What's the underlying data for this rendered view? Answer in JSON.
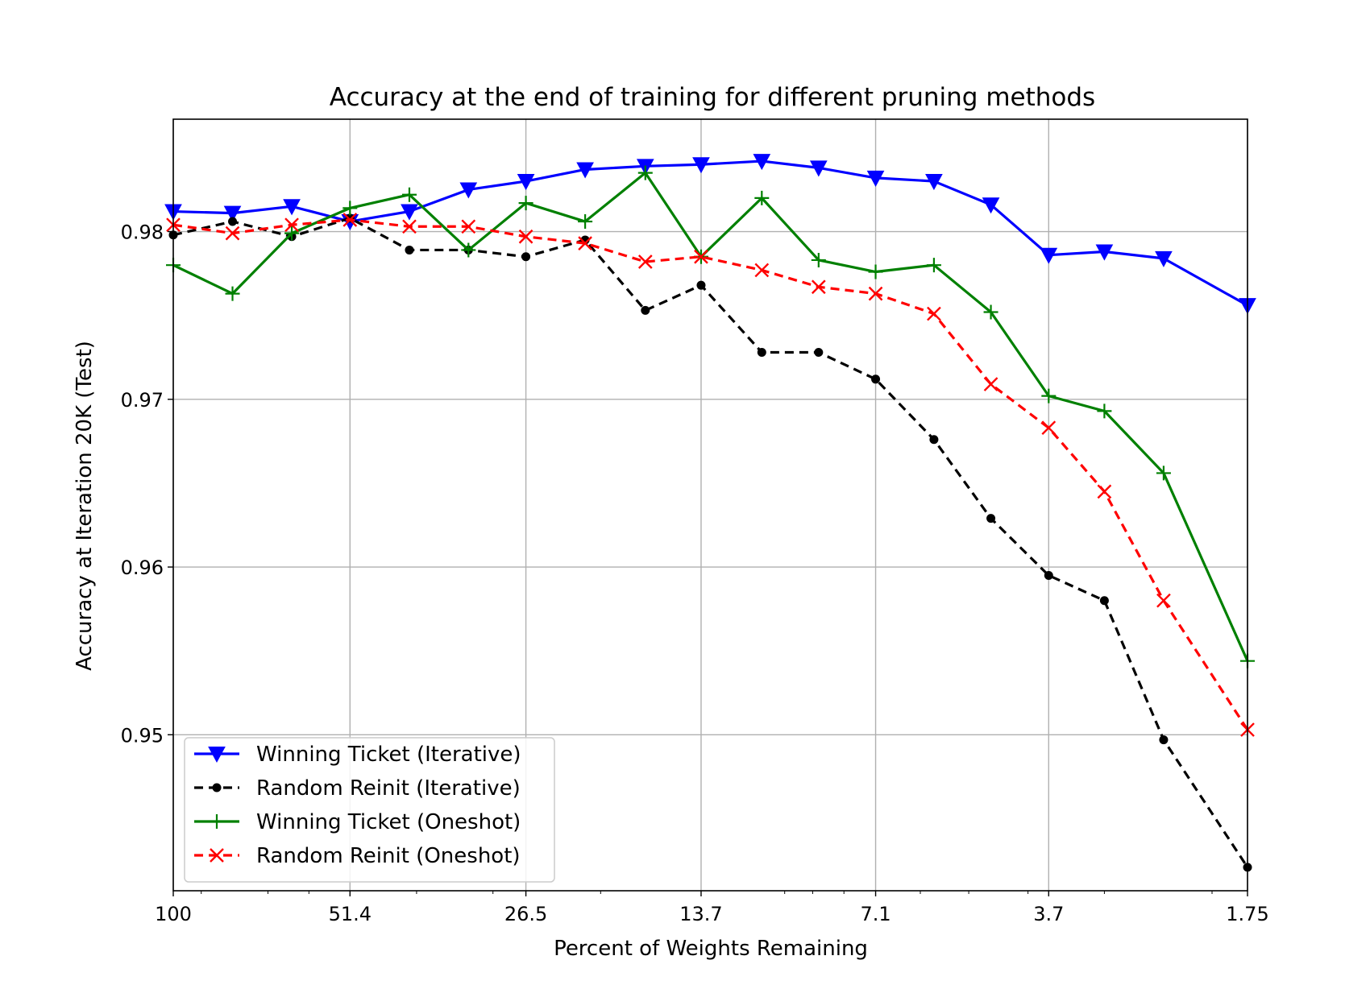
{
  "chart_data": {
    "type": "line",
    "title": "Accuracy at the end of training for different pruning methods",
    "xlabel": "Percent of Weights Remaining",
    "ylabel": "Accuracy at Iteration 20K (Test)",
    "x_scale": "log",
    "x_reversed": true,
    "xlim": [
      100,
      1.75
    ],
    "ylim": [
      0.9407,
      0.9867
    ],
    "x_tick_labels": [
      "100",
      "51.4",
      "26.5",
      "13.7",
      "7.1",
      "3.7",
      "1.75"
    ],
    "y_tick_labels": [
      "0.98",
      "0.97",
      "0.96",
      "0.95"
    ],
    "grid": true,
    "legend_position": "lower-left",
    "x": [
      100,
      80.0,
      64.0,
      51.4,
      41.1,
      32.9,
      26.5,
      21.2,
      16.9,
      13.7,
      10.9,
      8.8,
      7.1,
      5.7,
      4.6,
      3.7,
      3.0,
      2.4,
      1.75
    ],
    "series": [
      {
        "name": "Winning Ticket (Iterative)",
        "color": "#0000ff",
        "line_style": "solid",
        "marker": "triangle-down",
        "values": [
          0.9812,
          0.9811,
          0.9815,
          0.9806,
          0.9812,
          0.9825,
          0.983,
          0.9837,
          0.9839,
          0.984,
          0.9842,
          0.9838,
          0.9832,
          0.983,
          0.9816,
          0.9786,
          0.9788,
          0.9784,
          0.9756
        ]
      },
      {
        "name": "Random Reinit (Iterative)",
        "color": "#000000",
        "line_style": "dashed",
        "marker": "dot",
        "values": [
          0.9798,
          0.9806,
          0.9797,
          0.9808,
          0.9789,
          0.9789,
          0.9785,
          0.9795,
          0.9753,
          0.9768,
          0.9728,
          0.9728,
          0.9712,
          0.9676,
          0.9629,
          0.9595,
          0.958,
          0.9497,
          0.9421
        ]
      },
      {
        "name": "Winning Ticket (Oneshot)",
        "color": "#008000",
        "line_style": "solid",
        "marker": "plus",
        "values": [
          0.978,
          0.9763,
          0.9799,
          0.9814,
          0.9822,
          0.9789,
          0.9817,
          0.9806,
          0.9835,
          0.9785,
          0.982,
          0.9783,
          0.9776,
          0.978,
          0.9752,
          0.9702,
          0.9693,
          0.9656,
          0.9544
        ]
      },
      {
        "name": "Random Reinit (Oneshot)",
        "color": "#ff0000",
        "line_style": "dashed",
        "marker": "x",
        "values": [
          0.9804,
          0.9799,
          0.9804,
          0.9807,
          0.9803,
          0.9803,
          0.9797,
          0.9793,
          0.9782,
          0.9785,
          0.9777,
          0.9767,
          0.9763,
          0.9751,
          0.9709,
          0.9683,
          0.9645,
          0.958,
          0.9503
        ]
      }
    ]
  }
}
